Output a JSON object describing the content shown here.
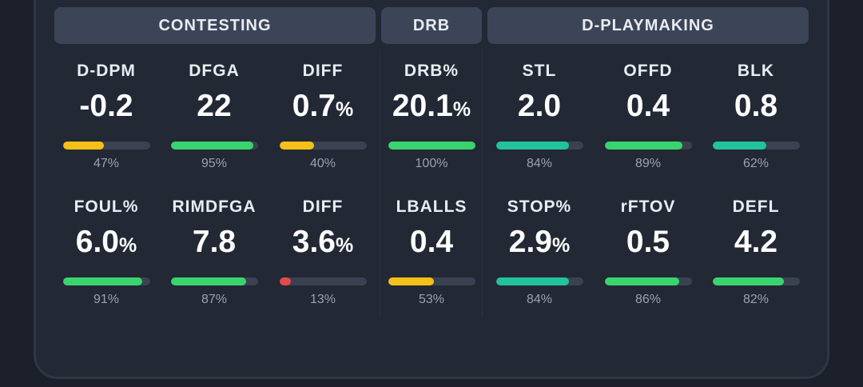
{
  "headers": {
    "contesting": "CONTESTING",
    "drb": "DRB",
    "playmaking": "D-PLAYMAKING"
  },
  "colors": {
    "green": "#3ad46e",
    "teal": "#22c39a",
    "yellow": "#f5c019",
    "red": "#e5484d",
    "track": "#3a4252"
  },
  "stats": [
    {
      "label": "D-DPM",
      "value": "-0.2",
      "unit": "",
      "pct": 47,
      "pct_text": "47%",
      "color": "yellow"
    },
    {
      "label": "DFGA",
      "value": "22",
      "unit": "",
      "pct": 95,
      "pct_text": "95%",
      "color": "green"
    },
    {
      "label": "DIFF",
      "value": "0.7",
      "unit": "%",
      "pct": 40,
      "pct_text": "40%",
      "color": "yellow"
    },
    {
      "label": "DRB%",
      "value": "20.1",
      "unit": "%",
      "pct": 100,
      "pct_text": "100%",
      "color": "green"
    },
    {
      "label": "STL",
      "value": "2.0",
      "unit": "",
      "pct": 84,
      "pct_text": "84%",
      "color": "teal"
    },
    {
      "label": "OFFD",
      "value": "0.4",
      "unit": "",
      "pct": 89,
      "pct_text": "89%",
      "color": "green"
    },
    {
      "label": "BLK",
      "value": "0.8",
      "unit": "",
      "pct": 62,
      "pct_text": "62%",
      "color": "teal"
    },
    {
      "label": "FOUL%",
      "value": "6.0",
      "unit": "%",
      "pct": 91,
      "pct_text": "91%",
      "color": "green"
    },
    {
      "label": "RIMDFGA",
      "value": "7.8",
      "unit": "",
      "pct": 87,
      "pct_text": "87%",
      "color": "green"
    },
    {
      "label": "DIFF",
      "value": "3.6",
      "unit": "%",
      "pct": 13,
      "pct_text": "13%",
      "color": "red"
    },
    {
      "label": "LBALLS",
      "value": "0.4",
      "unit": "",
      "pct": 53,
      "pct_text": "53%",
      "color": "yellow"
    },
    {
      "label": "STOP%",
      "value": "2.9",
      "unit": "%",
      "pct": 84,
      "pct_text": "84%",
      "color": "teal"
    },
    {
      "label": "rFTOV",
      "value": "0.5",
      "unit": "",
      "pct": 86,
      "pct_text": "86%",
      "color": "green"
    },
    {
      "label": "DEFL",
      "value": "4.2",
      "unit": "",
      "pct": 82,
      "pct_text": "82%",
      "color": "green"
    }
  ]
}
